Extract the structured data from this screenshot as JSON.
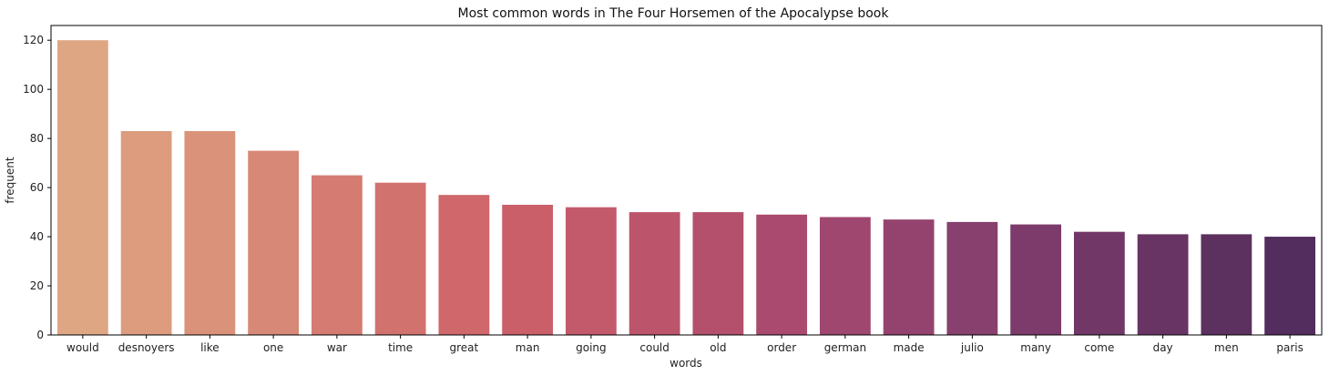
{
  "chart_data": {
    "type": "bar",
    "title": "Most common words in The Four Horsemen of the Apocalypse book",
    "xlabel": "words",
    "ylabel": "frequent",
    "categories": [
      "would",
      "desnoyers",
      "like",
      "one",
      "war",
      "time",
      "great",
      "man",
      "going",
      "could",
      "old",
      "order",
      "german",
      "made",
      "julio",
      "many",
      "come",
      "day",
      "men",
      "paris"
    ],
    "values": [
      120,
      83,
      83,
      75,
      65,
      62,
      57,
      53,
      52,
      50,
      50,
      49,
      48,
      47,
      46,
      45,
      42,
      41,
      41,
      40
    ],
    "ylim": [
      0,
      126
    ],
    "yticks": [
      0,
      20,
      40,
      60,
      80,
      100,
      120
    ],
    "grid": false,
    "colors": [
      "#dea683",
      "#dc9c7d",
      "#da937a",
      "#d78876",
      "#d57b71",
      "#d2726e",
      "#cf676b",
      "#ca5f6a",
      "#c35a6b",
      "#bc556b",
      "#b4506c",
      "#aa4a6e",
      "#a04770",
      "#94436f",
      "#88406e",
      "#7c3b6b",
      "#713767",
      "#673463",
      "#5d315f",
      "#532d5d"
    ]
  }
}
